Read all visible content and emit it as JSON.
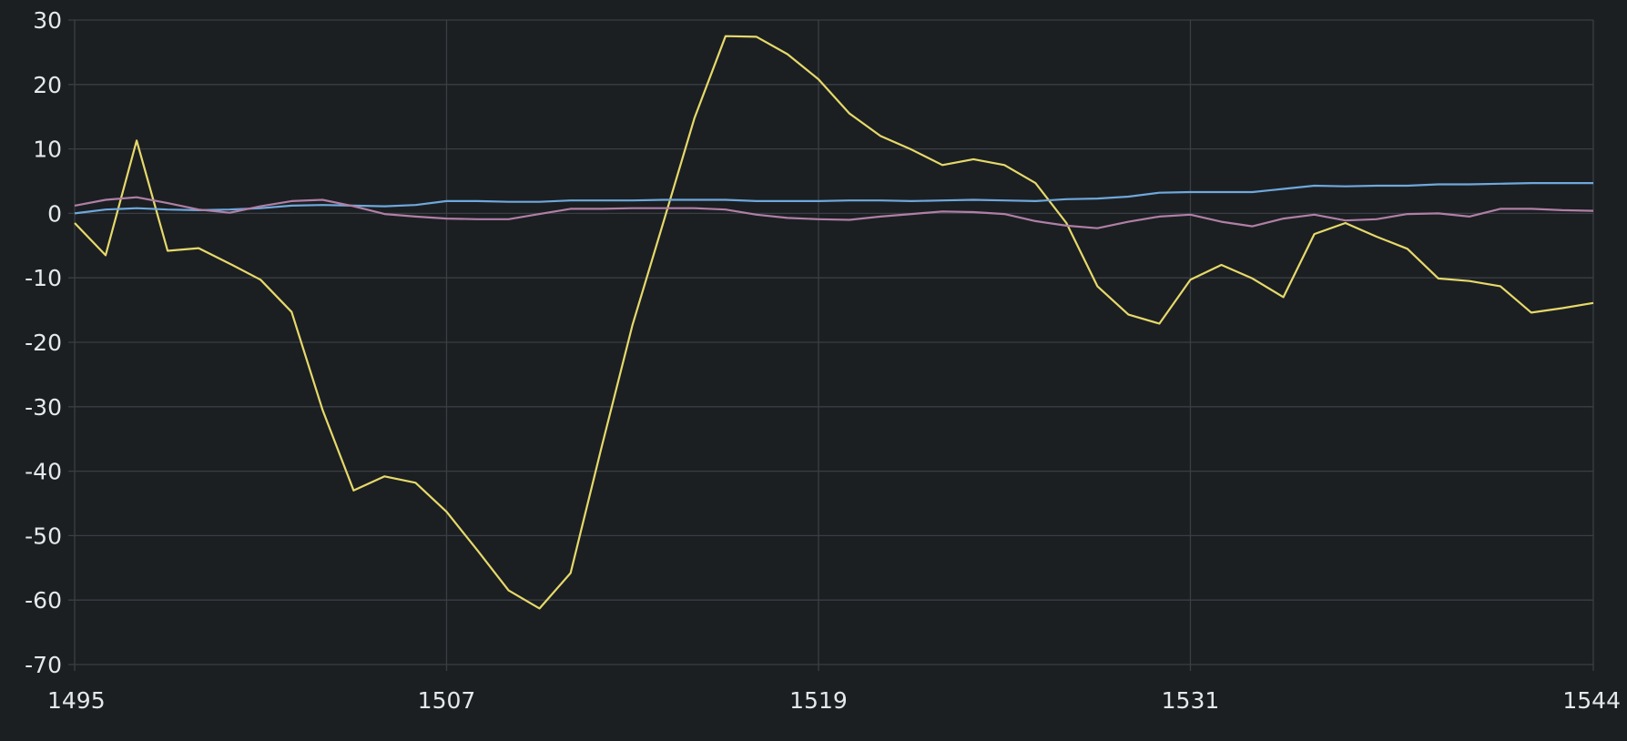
{
  "chart_data": {
    "type": "line",
    "title": "",
    "xlabel": "",
    "ylabel": "",
    "xlim": [
      1495,
      1544
    ],
    "ylim": [
      -70,
      30
    ],
    "x_ticks": [
      1495,
      1507,
      1519,
      1531,
      1544
    ],
    "y_ticks": [
      30,
      20,
      10,
      0,
      -10,
      -20,
      -30,
      -40,
      -50,
      -60,
      -70
    ],
    "grid": true,
    "legend": "none",
    "background": "#1b1f22",
    "x": [
      1495,
      1496,
      1497,
      1498,
      1499,
      1500,
      1501,
      1502,
      1503,
      1504,
      1505,
      1506,
      1507,
      1508,
      1509,
      1510,
      1511,
      1512,
      1513,
      1514,
      1515,
      1516,
      1517,
      1518,
      1519,
      1520,
      1521,
      1522,
      1523,
      1524,
      1525,
      1526,
      1527,
      1528,
      1529,
      1530,
      1531,
      1532,
      1533,
      1534,
      1535,
      1536,
      1537,
      1538,
      1539,
      1540,
      1541,
      1542,
      1543,
      1544
    ],
    "series": [
      {
        "color": "#e6d96a",
        "values": [
          -1.5,
          -6.5,
          11.3,
          -5.8,
          -5.4,
          -7.8,
          -10.3,
          -15.3,
          -30.5,
          -43.0,
          -40.8,
          -41.8,
          -46.3,
          -52.3,
          -58.5,
          -61.3,
          -55.8,
          -36.3,
          -17.3,
          -1.3,
          14.8,
          27.5,
          27.4,
          24.7,
          20.8,
          15.5,
          12.0,
          9.9,
          7.5,
          8.4,
          7.5,
          4.7,
          -1.5,
          -11.3,
          -15.7,
          -17.1,
          -10.3,
          -8.0,
          -10.1,
          -13.0,
          -3.2,
          -1.5,
          -3.6,
          -5.5,
          -10.1,
          -10.5,
          -11.3,
          -15.4,
          -14.7,
          -13.9
        ]
      },
      {
        "color": "#6fa8dc",
        "values": [
          0.0,
          0.6,
          0.8,
          0.6,
          0.5,
          0.6,
          0.8,
          1.2,
          1.3,
          1.2,
          1.1,
          1.3,
          1.9,
          1.9,
          1.8,
          1.8,
          2.0,
          2.0,
          2.0,
          2.1,
          2.1,
          2.1,
          1.9,
          1.9,
          1.9,
          2.0,
          2.0,
          1.9,
          2.0,
          2.1,
          2.0,
          1.9,
          2.2,
          2.3,
          2.6,
          3.2,
          3.3,
          3.3,
          3.3,
          3.8,
          4.3,
          4.2,
          4.3,
          4.3,
          4.5,
          4.5,
          4.6,
          4.7,
          4.7,
          4.7
        ]
      },
      {
        "color": "#b07fa6",
        "values": [
          1.2,
          2.1,
          2.5,
          1.6,
          0.6,
          0.1,
          1.1,
          1.9,
          2.1,
          1.1,
          -0.1,
          -0.5,
          -0.8,
          -0.9,
          -0.9,
          -0.1,
          0.7,
          0.7,
          0.8,
          0.8,
          0.8,
          0.6,
          -0.2,
          -0.7,
          -0.9,
          -1.0,
          -0.5,
          -0.1,
          0.3,
          0.2,
          -0.1,
          -1.2,
          -1.9,
          -2.3,
          -1.3,
          -0.5,
          -0.2,
          -1.3,
          -2.0,
          -0.8,
          -0.2,
          -1.1,
          -0.9,
          -0.1,
          0.0,
          -0.5,
          0.7,
          0.7,
          0.5,
          0.4
        ]
      }
    ]
  }
}
